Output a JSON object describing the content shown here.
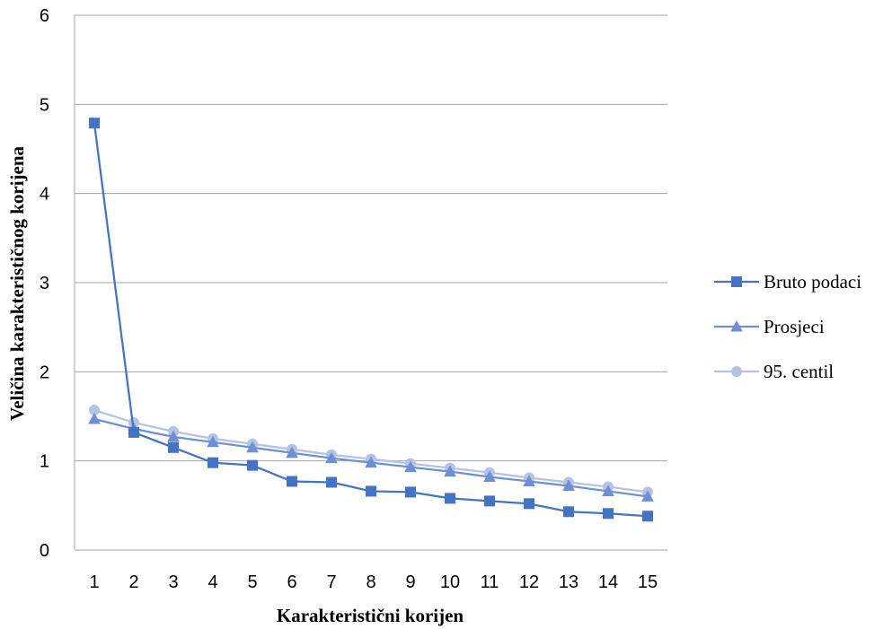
{
  "chart_data": {
    "type": "line",
    "title": "",
    "xlabel": "Karakteristični korijen",
    "ylabel": "Veličina karakterističnog korijena",
    "categories": [
      "1",
      "2",
      "3",
      "4",
      "5",
      "6",
      "7",
      "8",
      "9",
      "10",
      "11",
      "12",
      "13",
      "14",
      "15"
    ],
    "ylim": [
      0,
      6
    ],
    "yticks": [
      0,
      1,
      2,
      3,
      4,
      5,
      6
    ],
    "grid": true,
    "legend_position": "right",
    "series": [
      {
        "name": "Bruto podaci",
        "marker": "square",
        "color": "#4472C4",
        "values": [
          4.79,
          1.32,
          1.15,
          0.98,
          0.95,
          0.77,
          0.76,
          0.66,
          0.65,
          0.58,
          0.55,
          0.52,
          0.43,
          0.41,
          0.38
        ]
      },
      {
        "name": "Prosjeci",
        "marker": "triangle",
        "color": "#6F8FD3",
        "values": [
          1.47,
          1.36,
          1.27,
          1.21,
          1.15,
          1.09,
          1.03,
          0.98,
          0.93,
          0.88,
          0.82,
          0.77,
          0.72,
          0.66,
          0.6
        ]
      },
      {
        "name": "95. centil",
        "marker": "circle",
        "color": "#B4C2E6",
        "values": [
          1.57,
          1.43,
          1.33,
          1.25,
          1.19,
          1.13,
          1.07,
          1.02,
          0.97,
          0.92,
          0.87,
          0.81,
          0.76,
          0.71,
          0.65
        ]
      }
    ]
  }
}
